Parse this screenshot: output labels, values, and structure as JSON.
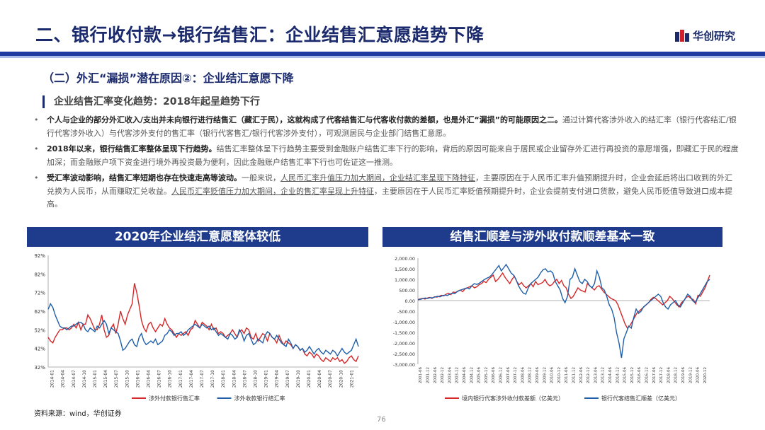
{
  "title": "二、银行收付款→银行结售汇：企业结售汇意愿趋势下降",
  "brand": {
    "name": "华创研究",
    "colors": {
      "red": "#d0202a",
      "navy": "#1a2a6c"
    }
  },
  "subheading": "（二）外汇“漏损”潜在原因②：企业结汇意愿下降",
  "section_label": "企业结售汇率变化趋势：2018年起呈趋势下行",
  "bullets": [
    {
      "bold": "个人与企业的部分外汇收入/支出并未向银行进行结售汇（藏汇于民），这就构成了代客结售汇与代客收付款的差额，也是外汇“漏损”的可能原因之二。",
      "text": "通过计算代客涉外收入的结汇率（银行代客结汇/银行代客涉外收入）与代客涉外支付的售汇率（银行代客售汇/银行代客涉外支付），可观测居民与企业部门结售汇意愿。"
    },
    {
      "bold": "2018年以来，银行结售汇率整体呈现下行趋势。",
      "text": "结售汇率整体呈下行趋势主要受到金融账户结售汇率下行的影响，背后的原因可能来自于居民或企业留存外汇进行再投资的意愿增强，即藏汇于民的程度加深；而金融账户项下资金进行境外再投资最为便利，因此金融账户结售汇率下行也可佐证这一推测。"
    },
    {
      "bold": "受汇率波动影响，结售汇率短期也存在快速走高等波动。",
      "t1": "一般来说，",
      "u1": "人民币汇率升值压力加大期间，企业结汇率呈现下降特征",
      "t2": "，主要原因在于人民币汇率升值预期提升时，企业会延后将出口收到的外汇兑换为人民币，从而赚取汇兑收益。",
      "u2": "人民币汇率贬值压力加大期间，企业的售汇率呈现上升特征",
      "t3": "，主要原因在于人民币汇率贬值预期提升时，企业会提前支付进口货款，避免人民币贬值导致进口成本提高。"
    }
  ],
  "source": "资料来源：wind，华创证券",
  "page_number": "76",
  "chart_data": [
    {
      "type": "line",
      "title": "2020年企业结汇意愿整体较低",
      "ylim": [
        0.32,
        0.92
      ],
      "y_ticks": [
        "92%",
        "82%",
        "72%",
        "62%",
        "52%",
        "42%",
        "32%"
      ],
      "x_ticks": [
        "2014-01",
        "2014-04",
        "2014-07",
        "2014-10",
        "2015-01",
        "2015-04",
        "2015-07",
        "2015-10",
        "2016-01",
        "2016-04",
        "2016-07",
        "2016-10",
        "2017-01",
        "2017-04",
        "2017-07",
        "2017-10",
        "2018-01",
        "2018-04",
        "2018-07",
        "2018-10",
        "2019-01",
        "2019-04",
        "2019-07",
        "2019-10",
        "2020-01",
        "2020-04",
        "2020-07",
        "2020-10",
        "2021-01"
      ],
      "x_start": "2014-01",
      "x_end": "2021-04",
      "legend_position": "bottom",
      "series": [
        {
          "name": "涉外付款银行售汇率",
          "color": "#d62728",
          "values": [
            0.48,
            0.46,
            0.45,
            0.48,
            0.5,
            0.52,
            0.52,
            0.53,
            0.53,
            0.52,
            0.53,
            0.55,
            0.53,
            0.56,
            0.52,
            0.55,
            0.55,
            0.6,
            0.58,
            0.55,
            0.52,
            0.52,
            0.55,
            0.6,
            0.52,
            0.48,
            0.49,
            0.53,
            0.55,
            0.5,
            0.55,
            0.62,
            0.58,
            0.55,
            0.6,
            0.63,
            0.66,
            0.77,
            0.72,
            0.65,
            0.57,
            0.53,
            0.51,
            0.55,
            0.56,
            0.53,
            0.51,
            0.53,
            0.55,
            0.54,
            0.58,
            0.55,
            0.53,
            0.52,
            0.5,
            0.48,
            0.5,
            0.49,
            0.5,
            0.51,
            0.49,
            0.52,
            0.53,
            0.57,
            0.55,
            0.53,
            0.56,
            0.55,
            0.54,
            0.52,
            0.55,
            0.52,
            0.53,
            0.5,
            0.51,
            0.5,
            0.48,
            0.49,
            0.5,
            0.52,
            0.5,
            0.48,
            0.51,
            0.52,
            0.5,
            0.53,
            0.52,
            0.48,
            0.47,
            0.5,
            0.46,
            0.48,
            0.5,
            0.49,
            0.46,
            0.5,
            0.48,
            0.47,
            0.45,
            0.49,
            0.46,
            0.44,
            0.46,
            0.45,
            0.44,
            0.42,
            0.44,
            0.43,
            0.41,
            0.42,
            0.39,
            0.38,
            0.4,
            0.39,
            0.37,
            0.39,
            0.38,
            0.36,
            0.35,
            0.37,
            0.36,
            0.35,
            0.37,
            0.36,
            0.37,
            0.35,
            0.36,
            0.34,
            0.35,
            0.37,
            0.38,
            0.36,
            0.35,
            0.38
          ]
        },
        {
          "name": "涉外收款银行结汇率",
          "color": "#1f5fa8",
          "values": [
            0.63,
            0.66,
            0.64,
            0.6,
            0.57,
            0.54,
            0.53,
            0.53,
            0.52,
            0.53,
            0.54,
            0.54,
            0.55,
            0.56,
            0.56,
            0.55,
            0.52,
            0.51,
            0.53,
            0.52,
            0.51,
            0.54,
            0.53,
            0.55,
            0.57,
            0.55,
            0.5,
            0.53,
            0.52,
            0.51,
            0.5,
            0.46,
            0.41,
            0.42,
            0.44,
            0.46,
            0.47,
            0.44,
            0.43,
            0.48,
            0.5,
            0.46,
            0.44,
            0.45,
            0.46,
            0.45,
            0.47,
            0.44,
            0.45,
            0.46,
            0.49,
            0.5,
            0.52,
            0.51,
            0.49,
            0.5,
            0.5,
            0.51,
            0.49,
            0.5,
            0.52,
            0.53,
            0.54,
            0.55,
            0.54,
            0.53,
            0.55,
            0.54,
            0.53,
            0.54,
            0.52,
            0.53,
            0.51,
            0.49,
            0.5,
            0.49,
            0.48,
            0.47,
            0.5,
            0.49,
            0.47,
            0.48,
            0.52,
            0.5,
            0.46,
            0.49,
            0.5,
            0.47,
            0.44,
            0.45,
            0.47,
            0.46,
            0.45,
            0.49,
            0.51,
            0.5,
            0.48,
            0.47,
            0.49,
            0.47,
            0.45,
            0.44,
            0.43,
            0.47,
            0.45,
            0.42,
            0.44,
            0.43,
            0.41,
            0.42,
            0.4,
            0.41,
            0.43,
            0.41,
            0.39,
            0.41,
            0.42,
            0.4,
            0.39,
            0.41,
            0.4,
            0.39,
            0.41,
            0.4,
            0.38,
            0.4,
            0.42,
            0.4,
            0.39,
            0.4,
            0.41,
            0.44,
            0.47,
            0.43
          ]
        }
      ]
    },
    {
      "type": "line",
      "title": "结售汇顺差与涉外收付款顺差基本一致",
      "ylim": [
        -3000,
        2000
      ],
      "y_ticks": [
        "2,000.00",
        "1,500.00",
        "1,000.00",
        "500.00",
        "0.00",
        "-500.00",
        "-1,000.00",
        "-1,500.00",
        "-2,000.00",
        "-2,500.00",
        "-3,000.00"
      ],
      "x_ticks": [
        "2001-06",
        "2001-12",
        "2002-06",
        "2002-12",
        "2003-06",
        "2003-12",
        "2004-06",
        "2004-12",
        "2005-06",
        "2005-12",
        "2006-06",
        "2006-12",
        "2007-06",
        "2007-12",
        "2008-06",
        "2008-12",
        "2009-06",
        "2009-12",
        "2010-06",
        "2010-12",
        "2011-06",
        "2011-12",
        "2012-06",
        "2012-12",
        "2013-06",
        "2013-12",
        "2014-06",
        "2014-12",
        "2015-06",
        "2015-12",
        "2016-06",
        "2016-12",
        "2017-06",
        "2017-12",
        "2018-06",
        "2018-12",
        "2019-06",
        "2019-12",
        "2020-06",
        "2020-12"
      ],
      "x_start": "2001-06",
      "x_end": "2021-03",
      "legend_position": "bottom",
      "series": [
        {
          "name": "境内银行代客涉外收付款差额（亿美元）",
          "color": "#d62728",
          "values": [
            50,
            80,
            100,
            70,
            120,
            150,
            100,
            180,
            160,
            200,
            250,
            220,
            300,
            350,
            280,
            400,
            380,
            450,
            500,
            420,
            550,
            600,
            650,
            700,
            600,
            650,
            750,
            800,
            900,
            850,
            1000,
            1100,
            1200,
            900,
            1000,
            1150,
            1300,
            1100,
            950,
            800,
            1000,
            1150,
            900,
            750,
            850,
            700,
            600,
            700,
            800,
            650,
            900,
            750,
            800,
            850,
            1000,
            800,
            700,
            750,
            900,
            1000,
            800,
            950,
            700,
            600,
            300,
            100,
            200,
            400,
            600,
            500,
            450,
            400,
            800,
            700,
            600,
            500,
            650,
            700,
            550,
            400,
            300,
            200,
            100,
            50,
            0,
            -200,
            -500,
            -800,
            -1100,
            -1300,
            -1200,
            -1000,
            -800,
            -600,
            -500,
            -400,
            -300,
            -200,
            -100,
            50,
            150,
            100,
            0,
            -100,
            -200,
            -100,
            0,
            200,
            100,
            -50,
            -200,
            -300,
            -100,
            0,
            150,
            200,
            100,
            50,
            -150,
            250,
            200,
            400,
            600,
            900,
            1200
          ]
        },
        {
          "name": "银行代客结售汇顺差（亿美元）",
          "color": "#1f5fa8",
          "values": [
            40,
            60,
            90,
            120,
            100,
            140,
            130,
            170,
            200,
            180,
            230,
            260,
            240,
            300,
            350,
            330,
            420,
            480,
            520,
            560,
            600,
            550,
            700,
            800,
            760,
            820,
            900,
            980,
            1050,
            1100,
            1200,
            1350,
            1500,
            1650,
            1400,
            1550,
            1700,
            1500,
            1300,
            1200,
            1000,
            700,
            500,
            350,
            300,
            600,
            800,
            900,
            1000,
            1100,
            1300,
            1450,
            1500,
            1350,
            1400,
            1300,
            900,
            700,
            500,
            100,
            -100,
            200,
            1000,
            1100,
            1500,
            1200,
            900,
            800,
            1000,
            900,
            700,
            600,
            800,
            1400,
            1100,
            600,
            500,
            200,
            -200,
            -400,
            -800,
            -1500,
            -2000,
            -2700,
            -1800,
            -1500,
            -1200,
            -1300,
            -800,
            -400,
            -600,
            -500,
            -300,
            -200,
            -100,
            0,
            100,
            200,
            300,
            200,
            -100,
            -300,
            -400,
            -200,
            -100,
            0,
            -200,
            -300,
            -100,
            100,
            300,
            200,
            0,
            -100,
            100,
            300,
            500,
            700,
            900,
            1000
          ]
        }
      ]
    }
  ]
}
